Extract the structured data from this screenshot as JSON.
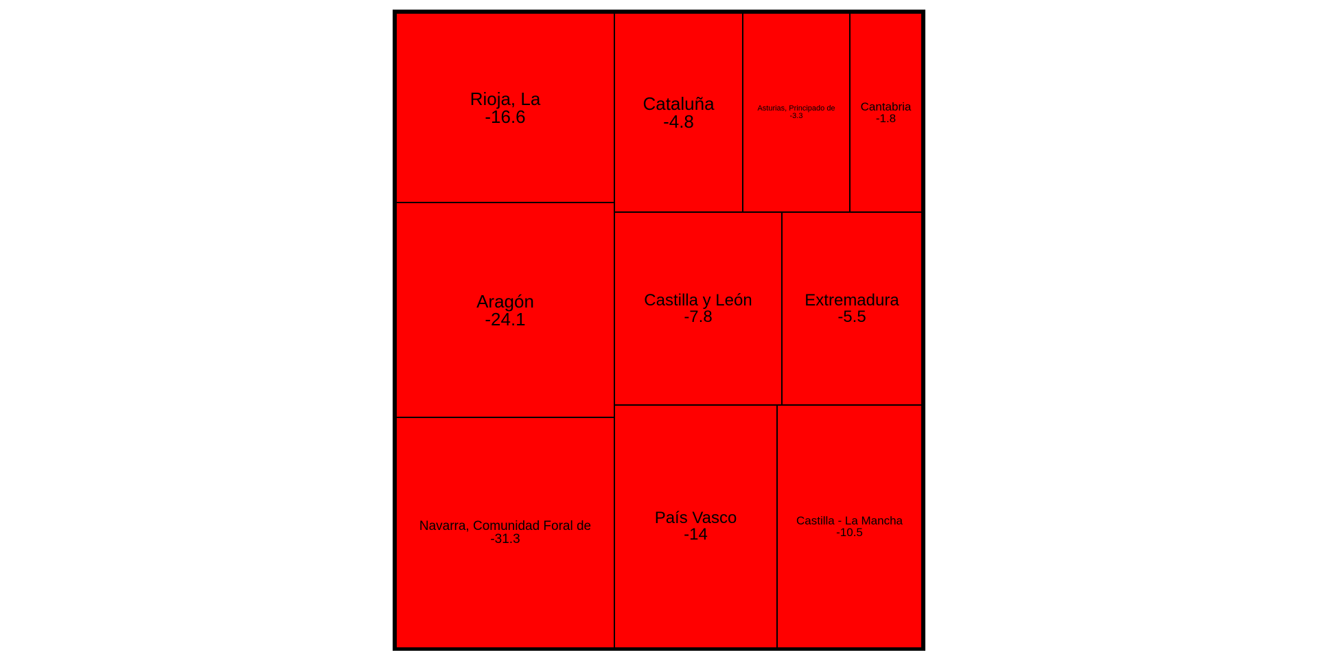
{
  "chart_data": {
    "type": "treemap",
    "fill_color": "#ff0000",
    "border_color": "#000000",
    "items": [
      {
        "label": "Rioja, La",
        "value": -16.6
      },
      {
        "label": "Aragón",
        "value": -24.1
      },
      {
        "label": "Navarra, Comunidad Foral de",
        "value": -31.3
      },
      {
        "label": "Cataluña",
        "value": -4.8
      },
      {
        "label": "Asturias, Principado de",
        "value": -3.3
      },
      {
        "label": "Cantabria",
        "value": -1.8
      },
      {
        "label": "Castilla y León",
        "value": -7.8
      },
      {
        "label": "Extremadura",
        "value": -5.5
      },
      {
        "label": "País Vasco",
        "value": -14
      },
      {
        "label": "Castilla - La Mancha",
        "value": -10.5
      }
    ]
  }
}
